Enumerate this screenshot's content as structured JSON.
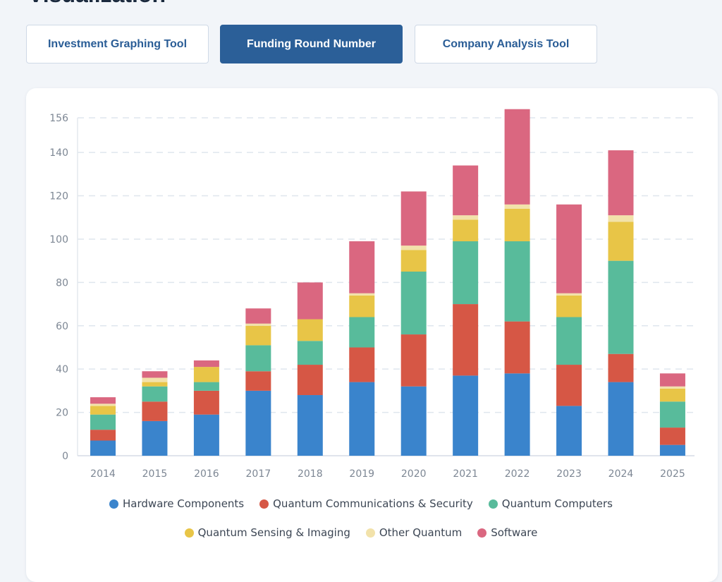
{
  "page": {
    "title": "Visualization"
  },
  "tabs": [
    {
      "label": "Investment Graphing Tool",
      "active": false
    },
    {
      "label": "Funding Round Number",
      "active": true
    },
    {
      "label": "Company Analysis Tool",
      "active": false
    }
  ],
  "chart_data": {
    "type": "bar",
    "stacked": true,
    "categories": [
      "2014",
      "2015",
      "2016",
      "2017",
      "2018",
      "2019",
      "2020",
      "2021",
      "2022",
      "2023",
      "2024",
      "2025"
    ],
    "yticks": [
      0,
      20,
      40,
      60,
      80,
      100,
      120,
      140,
      156
    ],
    "ylim": [
      0,
      156
    ],
    "grid": true,
    "legend_position": "bottom",
    "series": [
      {
        "name": "Hardware Components",
        "color": "#3a84cc",
        "values": [
          7,
          16,
          19,
          30,
          28,
          34,
          32,
          37,
          38,
          23,
          34,
          5
        ]
      },
      {
        "name": "Quantum Communications & Security",
        "color": "#d65745",
        "values": [
          5,
          9,
          11,
          9,
          14,
          16,
          24,
          33,
          24,
          19,
          13,
          8
        ]
      },
      {
        "name": "Quantum Computers",
        "color": "#58bb9b",
        "values": [
          7,
          7,
          4,
          12,
          11,
          14,
          29,
          29,
          37,
          22,
          43,
          12
        ]
      },
      {
        "name": "Quantum Sensing & Imaging",
        "color": "#e8c547",
        "values": [
          4,
          2,
          7,
          9,
          10,
          10,
          10,
          10,
          15,
          10,
          18,
          6
        ]
      },
      {
        "name": "Other Quantum",
        "color": "#f2e2aa",
        "values": [
          1,
          2,
          0,
          1,
          0,
          1,
          2,
          2,
          2,
          1,
          3,
          1
        ]
      },
      {
        "name": "Software",
        "color": "#da6780",
        "values": [
          3,
          3,
          3,
          7,
          17,
          24,
          25,
          23,
          44,
          41,
          30,
          6
        ]
      }
    ]
  }
}
